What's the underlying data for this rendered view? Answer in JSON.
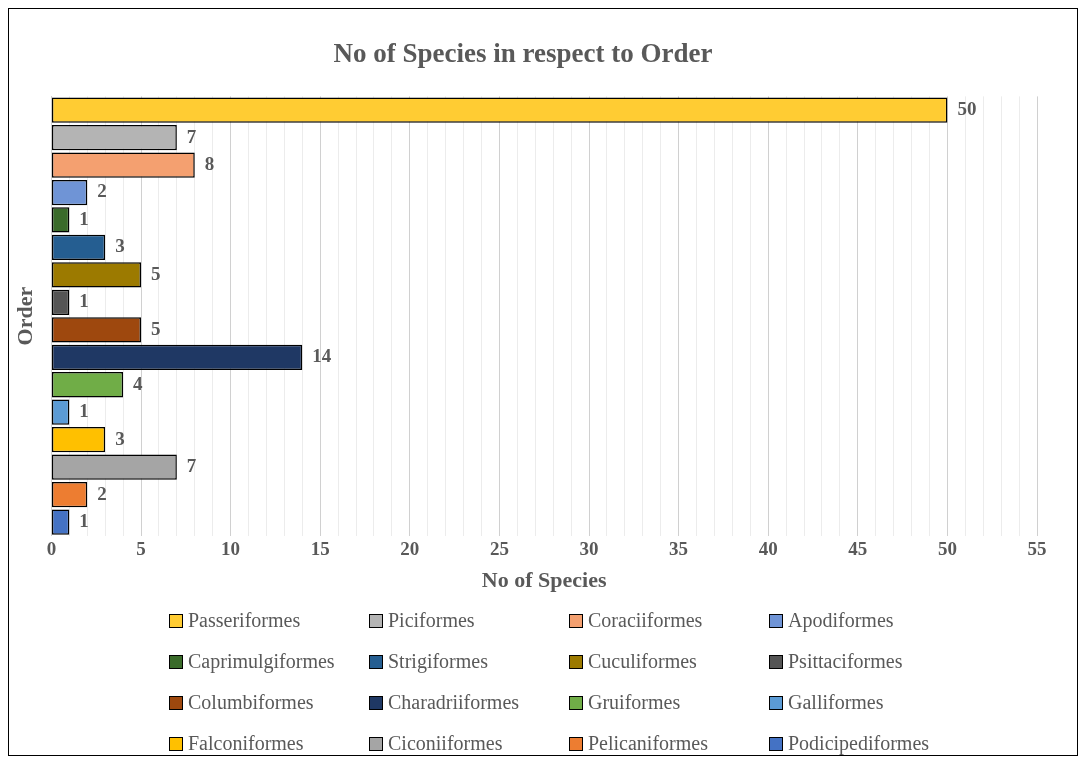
{
  "chart_data": {
    "type": "bar",
    "orientation": "horizontal",
    "title": "No of Species in respect to Order",
    "xlabel": "No of Species",
    "ylabel": "Order",
    "categories": [
      null
    ],
    "series": [
      {
        "name": "Passeriformes",
        "color": "#ffcc33",
        "values": [
          50
        ]
      },
      {
        "name": "Piciformes",
        "color": "#b4b4b4",
        "values": [
          7
        ]
      },
      {
        "name": "Coraciiformes",
        "color": "#f4a070",
        "values": [
          8
        ]
      },
      {
        "name": "Apodiformes",
        "color": "#6f94d6",
        "values": [
          2
        ]
      },
      {
        "name": "Caprimulgiformes",
        "color": "#3a6b2a",
        "values": [
          1
        ]
      },
      {
        "name": "Strigiformes",
        "color": "#255e91",
        "values": [
          3
        ]
      },
      {
        "name": "Cuculiformes",
        "color": "#9c7a00",
        "values": [
          5
        ]
      },
      {
        "name": "Psittaciformes",
        "color": "#555555",
        "values": [
          1
        ]
      },
      {
        "name": "Columbiformes",
        "color": "#9e480e",
        "values": [
          5
        ]
      },
      {
        "name": "Charadriiformes",
        "color": "#1f3864",
        "values": [
          14
        ]
      },
      {
        "name": "Gruiformes",
        "color": "#70ad47",
        "values": [
          4
        ]
      },
      {
        "name": "Galliformes",
        "color": "#5b9bd5",
        "values": [
          1
        ]
      },
      {
        "name": "Falconiformes",
        "color": "#ffc000",
        "values": [
          3
        ]
      },
      {
        "name": "Ciconiiformes",
        "color": "#a5a5a5",
        "values": [
          7
        ]
      },
      {
        "name": "Pelicaniformes",
        "color": "#ed7d31",
        "values": [
          2
        ]
      },
      {
        "name": "Podicipediformes",
        "color": "#4472c4",
        "values": [
          1
        ]
      }
    ],
    "xlim": [
      0,
      55
    ],
    "xticks": [
      0,
      {
        "value": 1,
        "label": null
      },
      {
        "value": 2,
        "label": null
      },
      {
        "value": 3,
        "label": null
      },
      {
        "value": 4,
        "label": null
      },
      5,
      {
        "value": 6,
        "label": null
      },
      {
        "value": 7,
        "label": null
      },
      {
        "value": 8,
        "label": null
      },
      {
        "value": 9,
        "label": null
      },
      10,
      {
        "value": 11,
        "label": null
      },
      {
        "value": 12,
        "label": null
      },
      {
        "value": 13,
        "label": null
      },
      {
        "value": 14,
        "label": null
      },
      15,
      {
        "value": 16,
        "label": null
      },
      {
        "value": 17,
        "label": null
      },
      {
        "value": 18,
        "label": null
      },
      {
        "value": 19,
        "label": null
      },
      20,
      {
        "value": 21,
        "label": null
      },
      {
        "value": 22,
        "label": null
      },
      {
        "value": 23,
        "label": null
      },
      {
        "value": 24,
        "label": null
      },
      25,
      {
        "value": 26,
        "label": null
      },
      {
        "value": 27,
        "label": null
      },
      {
        "value": 28,
        "label": null
      },
      {
        "value": 29,
        "label": null
      },
      30,
      {
        "value": 31,
        "label": null
      },
      {
        "value": 32,
        "label": null
      },
      {
        "value": 33,
        "label": null
      },
      {
        "value": 34,
        "label": null
      },
      35,
      {
        "value": 36,
        "label": null
      },
      {
        "value": 37,
        "label": null
      },
      {
        "value": 38,
        "label": null
      },
      {
        "value": 39,
        "label": null
      },
      40,
      {
        "value": 41,
        "label": null
      },
      {
        "value": 42,
        "label": null
      },
      {
        "value": 43,
        "label": null
      },
      {
        "value": 44,
        "label": null
      },
      45,
      {
        "value": 46,
        "label": null
      },
      {
        "value": 47,
        "label": null
      },
      {
        "value": 48,
        "label": null
      },
      {
        "value": 49,
        "label": null
      },
      50,
      {
        "value": 51,
        "label": null
      },
      {
        "value": 52,
        "label": null
      },
      {
        "value": 53,
        "label": null
      },
      {
        "value": 54,
        "label": null
      },
      55
    ],
    "grid": "x",
    "legend": "bottom",
    "data_labels": true,
    "tick_labels": "x"
  }
}
